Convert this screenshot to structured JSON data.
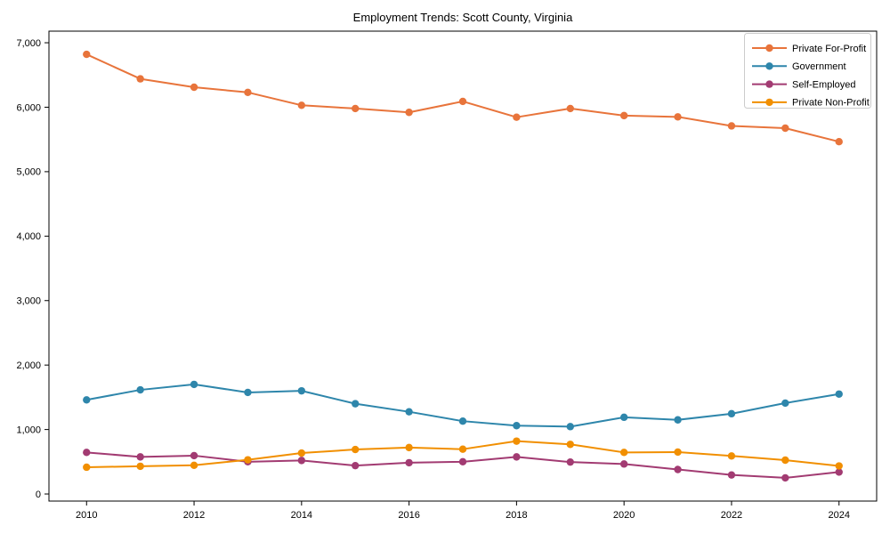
{
  "chart_data": {
    "type": "line",
    "title": "Employment Trends: Scott County, Virginia",
    "xlabel": "",
    "ylabel": "",
    "x": [
      2010,
      2011,
      2012,
      2013,
      2014,
      2015,
      2016,
      2017,
      2018,
      2019,
      2020,
      2021,
      2022,
      2023,
      2024
    ],
    "x_tick_years": [
      2010,
      2012,
      2014,
      2016,
      2018,
      2020,
      2022,
      2024
    ],
    "y_ticks": [
      0,
      1000,
      2000,
      3000,
      4000,
      5000,
      6000,
      7000
    ],
    "y_tick_labels": [
      "0",
      "1,000",
      "2,000",
      "3,000",
      "4,000",
      "5,000",
      "6,000",
      "7,000"
    ],
    "xlim": [
      2009.3,
      2024.7
    ],
    "ylim": [
      -110,
      7180
    ],
    "grid": false,
    "legend_position": "upper-right",
    "series": [
      {
        "name": "Private For-Profit",
        "color": "#E8743B",
        "values": [
          6820,
          6440,
          6310,
          6230,
          6030,
          5980,
          5920,
          6090,
          5845,
          5980,
          5870,
          5850,
          5710,
          5675,
          5465
        ]
      },
      {
        "name": "Government",
        "color": "#2E86AB",
        "values": [
          1460,
          1615,
          1700,
          1575,
          1600,
          1400,
          1275,
          1130,
          1060,
          1045,
          1190,
          1150,
          1245,
          1410,
          1550
        ]
      },
      {
        "name": "Self-Employed",
        "color": "#A23B72",
        "values": [
          645,
          575,
          595,
          500,
          520,
          440,
          485,
          500,
          575,
          495,
          465,
          380,
          295,
          250,
          340
        ]
      },
      {
        "name": "Private Non-Profit",
        "color": "#F18F01",
        "values": [
          415,
          430,
          445,
          530,
          635,
          690,
          720,
          695,
          820,
          770,
          645,
          650,
          590,
          525,
          435
        ]
      }
    ],
    "axis_color": "#000000",
    "legend_border_color": "#cccccc",
    "legend_background": "#ffffff"
  }
}
